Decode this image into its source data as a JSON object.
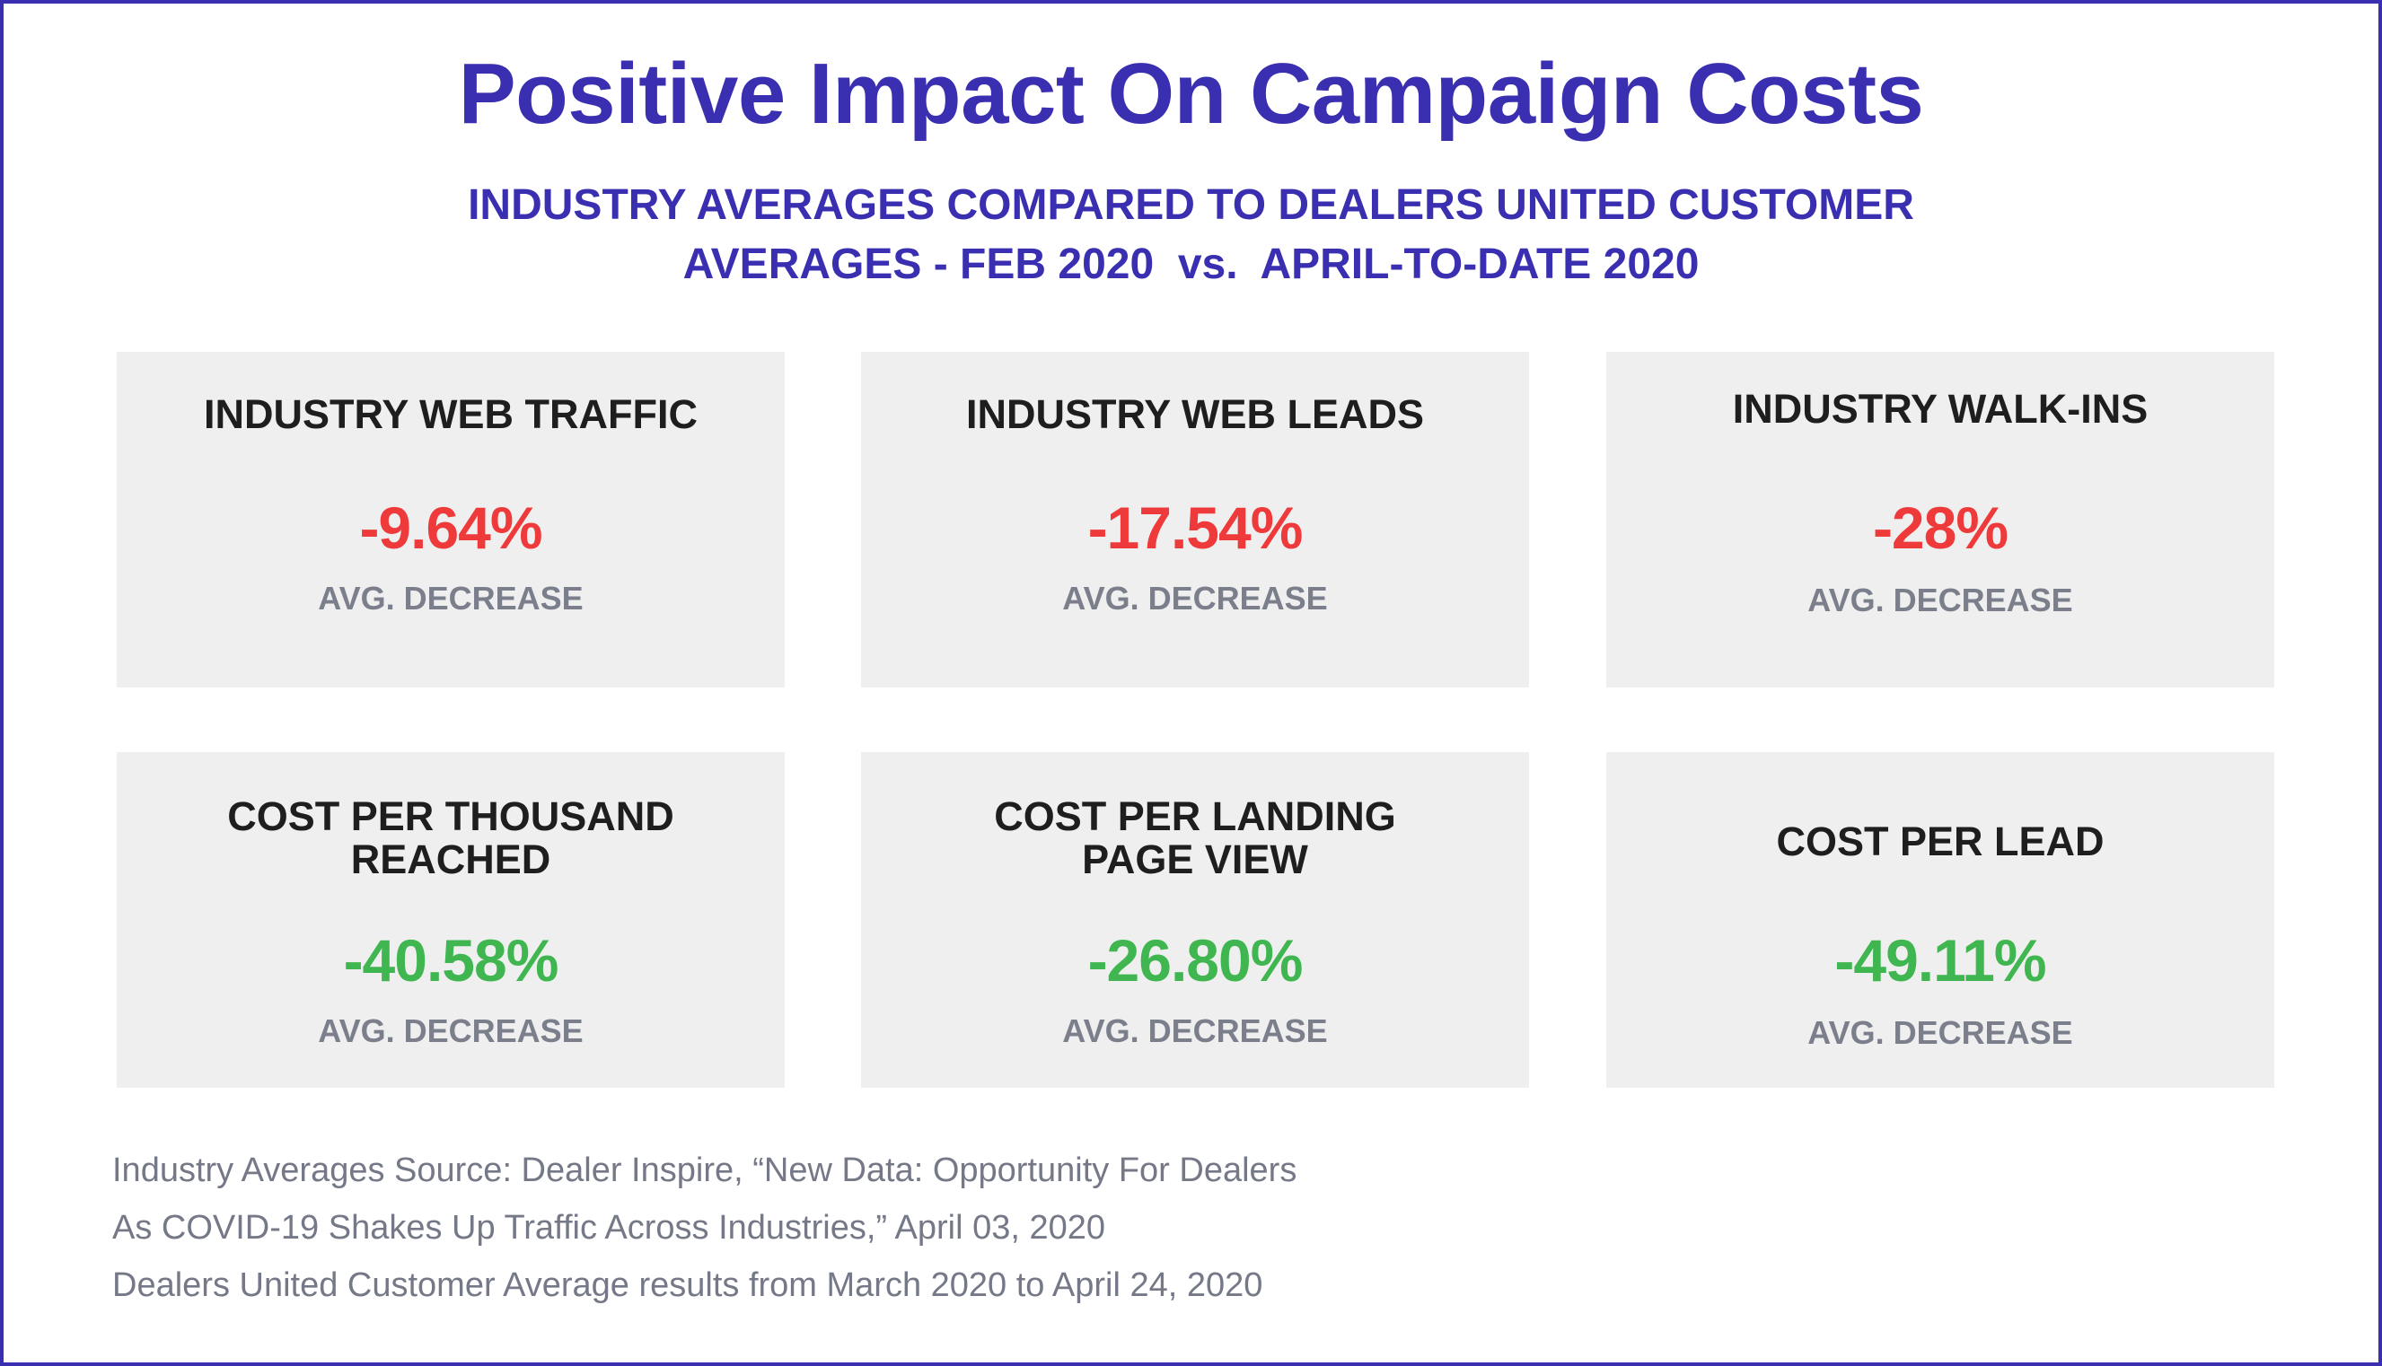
{
  "title": "Positive Impact On Campaign Costs",
  "subtitle_lines": [
    "INDUSTRY AVERAGES COMPARED TO DEALERS UNITED CUSTOMER",
    "AVERAGES - FEB 2020  vs.  APRIL-TO-DATE 2020"
  ],
  "cards": [
    {
      "label_lines": [
        "INDUSTRY WEB TRAFFIC"
      ],
      "value": "-9.64%",
      "sub": "AVG. DECREASE",
      "tone": "negative"
    },
    {
      "label_lines": [
        "INDUSTRY WEB LEADS"
      ],
      "value": "-17.54%",
      "sub": "AVG. DECREASE",
      "tone": "negative"
    },
    {
      "label_lines": [
        "INDUSTRY WALK-INS"
      ],
      "value": "-28%",
      "sub": "AVG. DECREASE",
      "tone": "negative"
    },
    {
      "label_lines": [
        "COST PER THOUSAND",
        "REACHED"
      ],
      "value": "-40.58%",
      "sub": "AVG. DECREASE",
      "tone": "positive"
    },
    {
      "label_lines": [
        "COST PER LANDING",
        "PAGE VIEW"
      ],
      "value": "-26.80%",
      "sub": "AVG. DECREASE",
      "tone": "positive"
    },
    {
      "label_lines": [
        "COST PER LEAD"
      ],
      "value": "-49.11%",
      "sub": "AVG. DECREASE",
      "tone": "positive"
    }
  ],
  "footnote_lines": [
    "Industry Averages Source: Dealer Inspire, “New Data: Opportunity For Dealers",
    "As COVID-19 Shakes Up Traffic Across Industries,” April 03, 2020",
    "Dealers United Customer Average results from March 2020 to April 24, 2020"
  ],
  "colors": {
    "brand": "#3a2fb0",
    "negative": "#ee3a3a",
    "positive": "#3fb650",
    "card_bg": "#efefef"
  }
}
